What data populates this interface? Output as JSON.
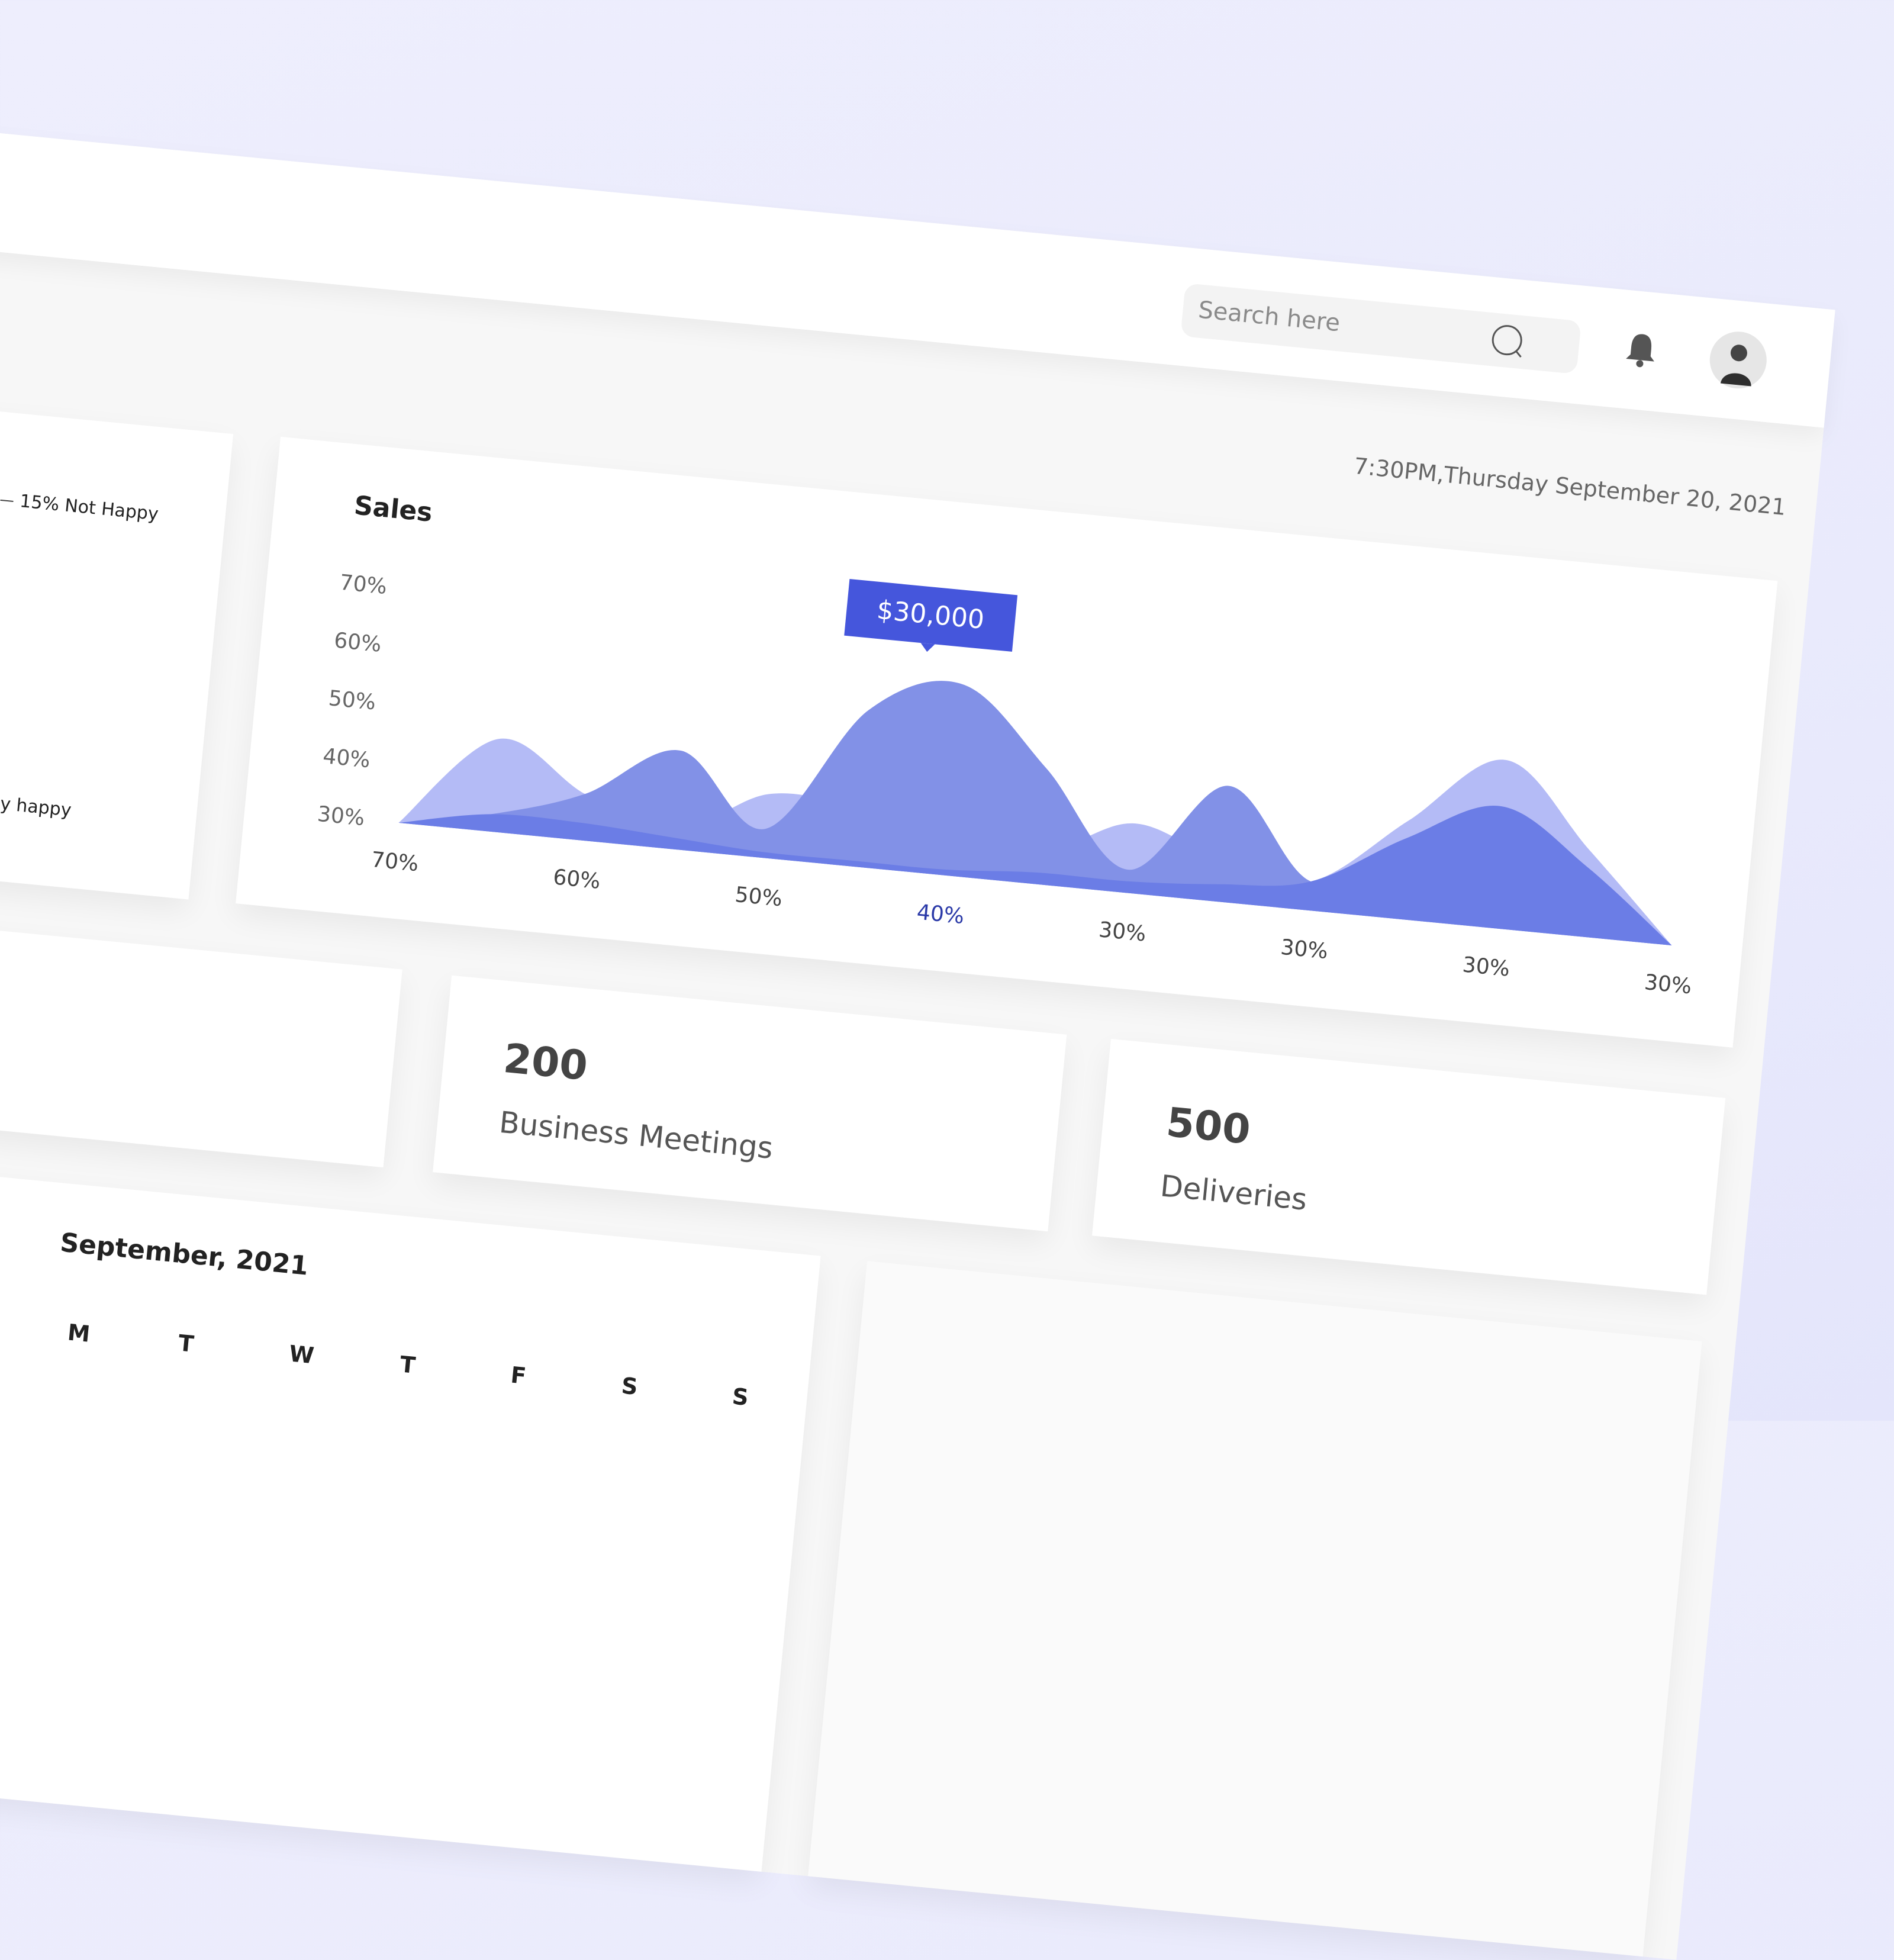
{
  "header": {
    "search_placeholder": "Search here"
  },
  "datetime": "7:30PM,Thursday September 20, 2021",
  "satisfaction": {
    "labels": [
      "15% Not Happy",
      "y happy"
    ]
  },
  "chart_data": {
    "type": "area",
    "title": "Sales",
    "categories": [
      "70%",
      null,
      "60%",
      null,
      "50%",
      null,
      "40%",
      null,
      "30%",
      null,
      "30%",
      null,
      "30%",
      null,
      "30%"
    ],
    "series": [
      {
        "color": "#b4bbf6",
        "values": [
          30,
          46,
          38,
          33,
          41,
          40,
          36,
          35,
          42,
          37,
          35,
          47,
          59,
          45,
          30
        ]
      },
      {
        "color": "#8291e7",
        "values": [
          30,
          33,
          38,
          47,
          35,
          57,
          63,
          50,
          34,
          50,
          35,
          40,
          46,
          38,
          30
        ]
      },
      {
        "color": "#6b7de6",
        "values": [
          30,
          33,
          33,
          32,
          31,
          31,
          31,
          32,
          32,
          33,
          35,
          44,
          51,
          42,
          30
        ]
      }
    ],
    "ylim": [
      30,
      70
    ],
    "yticks": [
      {
        "value": 70,
        "label": "70%"
      },
      {
        "value": 60,
        "label": "60%"
      },
      {
        "value": 50,
        "label": "50%"
      },
      {
        "value": 40,
        "label": "40%"
      },
      {
        "value": 30,
        "label": "30%"
      }
    ],
    "annotation": "$30,000",
    "highlight_color": "#2b3aa8"
  },
  "stats": [
    {
      "value": 200,
      "label": "Business Meetings"
    },
    {
      "value": 500,
      "label": "Deliveries"
    }
  ],
  "calendar": {
    "title": "September, 2021",
    "weekdays": [
      "M",
      "T",
      "W",
      "T",
      "F",
      "S",
      "S"
    ]
  }
}
